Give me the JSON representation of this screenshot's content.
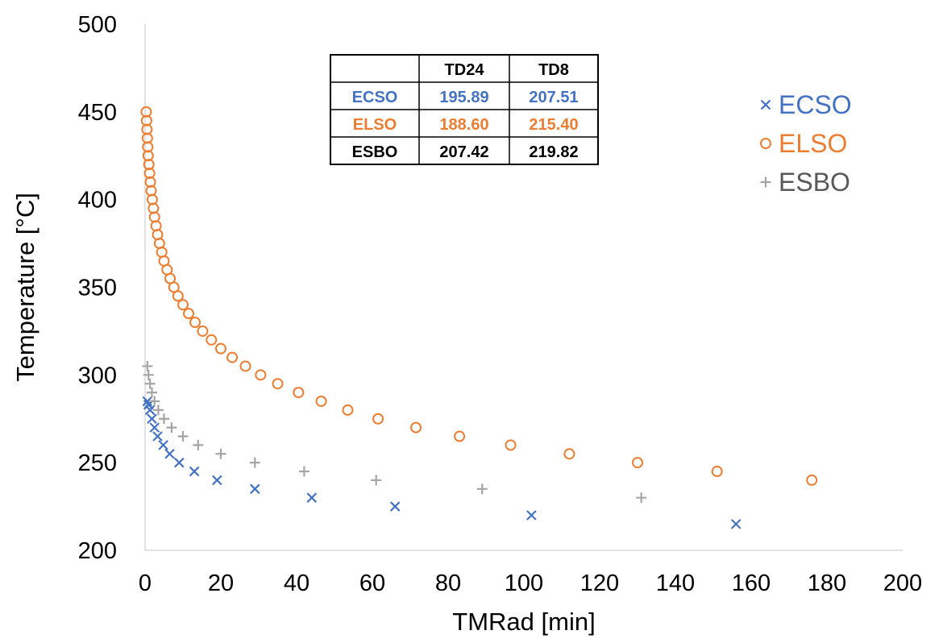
{
  "chart_data": {
    "type": "scatter",
    "title": "",
    "xlabel": "TMRad [min]",
    "ylabel": "Temperature [°C]",
    "xlim": [
      0,
      200
    ],
    "ylim": [
      200,
      500
    ],
    "xticks": [
      "0",
      "20",
      "40",
      "60",
      "80",
      "100",
      "120",
      "140",
      "160",
      "180",
      "200"
    ],
    "yticks": [
      "200",
      "250",
      "300",
      "350",
      "400",
      "450",
      "500"
    ],
    "grid": false,
    "legend_position": "right",
    "series": [
      {
        "name": "ECSO",
        "marker": "x",
        "color": "#4472C4",
        "points": [
          [
            0.6,
            285
          ],
          [
            0.9,
            283
          ],
          [
            1.3,
            280
          ],
          [
            1.8,
            275
          ],
          [
            2.5,
            270
          ],
          [
            3.3,
            265
          ],
          [
            4.8,
            260
          ],
          [
            6.5,
            255
          ],
          [
            9.0,
            250
          ],
          [
            13.0,
            245
          ],
          [
            19.0,
            240
          ],
          [
            29.0,
            235
          ],
          [
            44.0,
            230
          ],
          [
            66.0,
            225
          ],
          [
            102.0,
            220
          ],
          [
            156.0,
            215
          ]
        ]
      },
      {
        "name": "ELSO",
        "marker": "o",
        "color": "#ED7D31",
        "points": [
          [
            0.3,
            450
          ],
          [
            0.4,
            445
          ],
          [
            0.5,
            440
          ],
          [
            0.6,
            435
          ],
          [
            0.7,
            430
          ],
          [
            0.8,
            425
          ],
          [
            1.0,
            420
          ],
          [
            1.2,
            415
          ],
          [
            1.4,
            410
          ],
          [
            1.6,
            405
          ],
          [
            1.9,
            400
          ],
          [
            2.2,
            395
          ],
          [
            2.5,
            390
          ],
          [
            2.9,
            385
          ],
          [
            3.3,
            380
          ],
          [
            3.8,
            375
          ],
          [
            4.4,
            370
          ],
          [
            5.0,
            365
          ],
          [
            5.8,
            360
          ],
          [
            6.6,
            355
          ],
          [
            7.6,
            350
          ],
          [
            8.7,
            345
          ],
          [
            10.0,
            340
          ],
          [
            11.5,
            335
          ],
          [
            13.2,
            330
          ],
          [
            15.2,
            325
          ],
          [
            17.5,
            320
          ],
          [
            20.0,
            315
          ],
          [
            23.0,
            310
          ],
          [
            26.5,
            305
          ],
          [
            30.5,
            300
          ],
          [
            35.0,
            295
          ],
          [
            40.5,
            290
          ],
          [
            46.5,
            285
          ],
          [
            53.5,
            280
          ],
          [
            61.5,
            275
          ],
          [
            71.5,
            270
          ],
          [
            83.0,
            265
          ],
          [
            96.5,
            260
          ],
          [
            112.0,
            255
          ],
          [
            130.0,
            250
          ],
          [
            151.0,
            245
          ],
          [
            176.0,
            240
          ]
        ]
      },
      {
        "name": "ESBO",
        "marker": "+",
        "color": "#A5A5A5",
        "points": [
          [
            0.6,
            305
          ],
          [
            0.9,
            300
          ],
          [
            1.3,
            295
          ],
          [
            1.8,
            290
          ],
          [
            2.5,
            285
          ],
          [
            3.5,
            280
          ],
          [
            5.0,
            275
          ],
          [
            7.0,
            270
          ],
          [
            10.0,
            265
          ],
          [
            14.0,
            260
          ],
          [
            20.0,
            255
          ],
          [
            29.0,
            250
          ],
          [
            42.0,
            245
          ],
          [
            61.0,
            240
          ],
          [
            89.0,
            235
          ],
          [
            131.0,
            230
          ]
        ]
      }
    ],
    "table": {
      "columns": [
        "",
        "TD24",
        "TD8"
      ],
      "rows": [
        {
          "name": "ECSO",
          "color": "#4472C4",
          "cells": [
            "195.89",
            "207.51"
          ]
        },
        {
          "name": "ELSO",
          "color": "#ED7D31",
          "cells": [
            "188.60",
            "215.40"
          ]
        },
        {
          "name": "ESBO",
          "color": "#000000",
          "cells": [
            "207.42",
            "219.82"
          ]
        }
      ]
    }
  }
}
